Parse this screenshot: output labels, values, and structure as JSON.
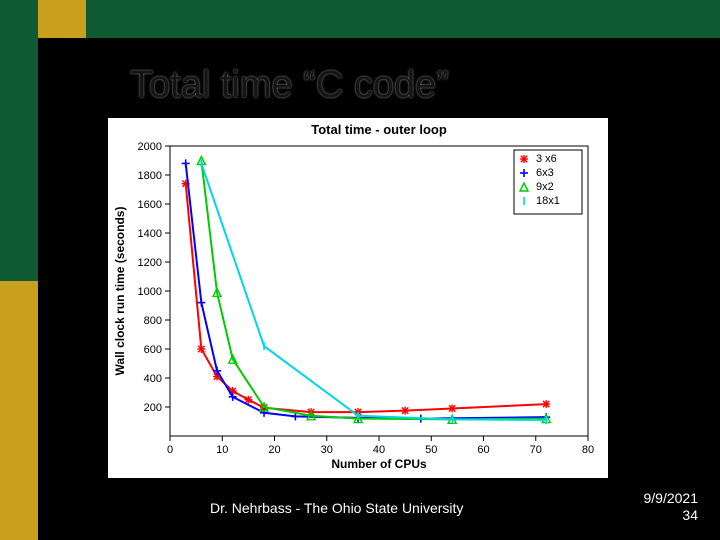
{
  "slide": {
    "title": "Total time “C code”",
    "footer_author": "Dr. Nehrbass - The Ohio State University",
    "footer_date": "9/9/2021",
    "footer_pagenum": "34",
    "background_color": "#000000",
    "accent_green": "#0e5a33",
    "accent_gold": "#c9a01e"
  },
  "chart": {
    "type": "line",
    "title": "Total time - outer loop",
    "xlabel": "Number of CPUs",
    "ylabel": "Wall clock run time (seconds)",
    "background_color": "#ffffff",
    "plot_background": "#ffffff",
    "axis_box_color": "#000000",
    "xlim": [
      0,
      80
    ],
    "ylim": [
      0,
      2000
    ],
    "xtick_step": 10,
    "ytick_step": 200,
    "grid": false,
    "line_width": 2,
    "title_fontsize": 13,
    "label_fontsize": 12,
    "tick_fontsize": 11,
    "legend": {
      "position": "upper-right",
      "entries": [
        "3 x6",
        "6x3",
        "9x2",
        "18x1"
      ],
      "marker_colors": [
        "#ff0000",
        "#0000ff",
        "#00cc00",
        "#00d6e6"
      ]
    },
    "series": [
      {
        "name": "3 x6",
        "color": "#ff0000",
        "marker": "asterisk",
        "x": [
          3,
          6,
          9,
          12,
          15,
          18,
          27,
          36,
          45,
          54,
          72
        ],
        "y": [
          1740,
          600,
          410,
          310,
          250,
          195,
          165,
          165,
          175,
          190,
          220
        ]
      },
      {
        "name": "6x3",
        "color": "#0000ff",
        "marker": "plus",
        "x": [
          3,
          6,
          9,
          12,
          18,
          24,
          36,
          48,
          72
        ],
        "y": [
          1880,
          920,
          450,
          270,
          160,
          135,
          125,
          120,
          130
        ]
      },
      {
        "name": "9x2",
        "color": "#00cc00",
        "marker": "triangle",
        "x": [
          6,
          9,
          12,
          18,
          27,
          36,
          54,
          72
        ],
        "y": [
          1900,
          990,
          530,
          200,
          140,
          120,
          115,
          120
        ]
      },
      {
        "name": "18x1",
        "color": "#00d6e6",
        "marker": "vline",
        "x": [
          6,
          18,
          36,
          54,
          72
        ],
        "y": [
          1880,
          620,
          140,
          115,
          110
        ]
      }
    ]
  }
}
